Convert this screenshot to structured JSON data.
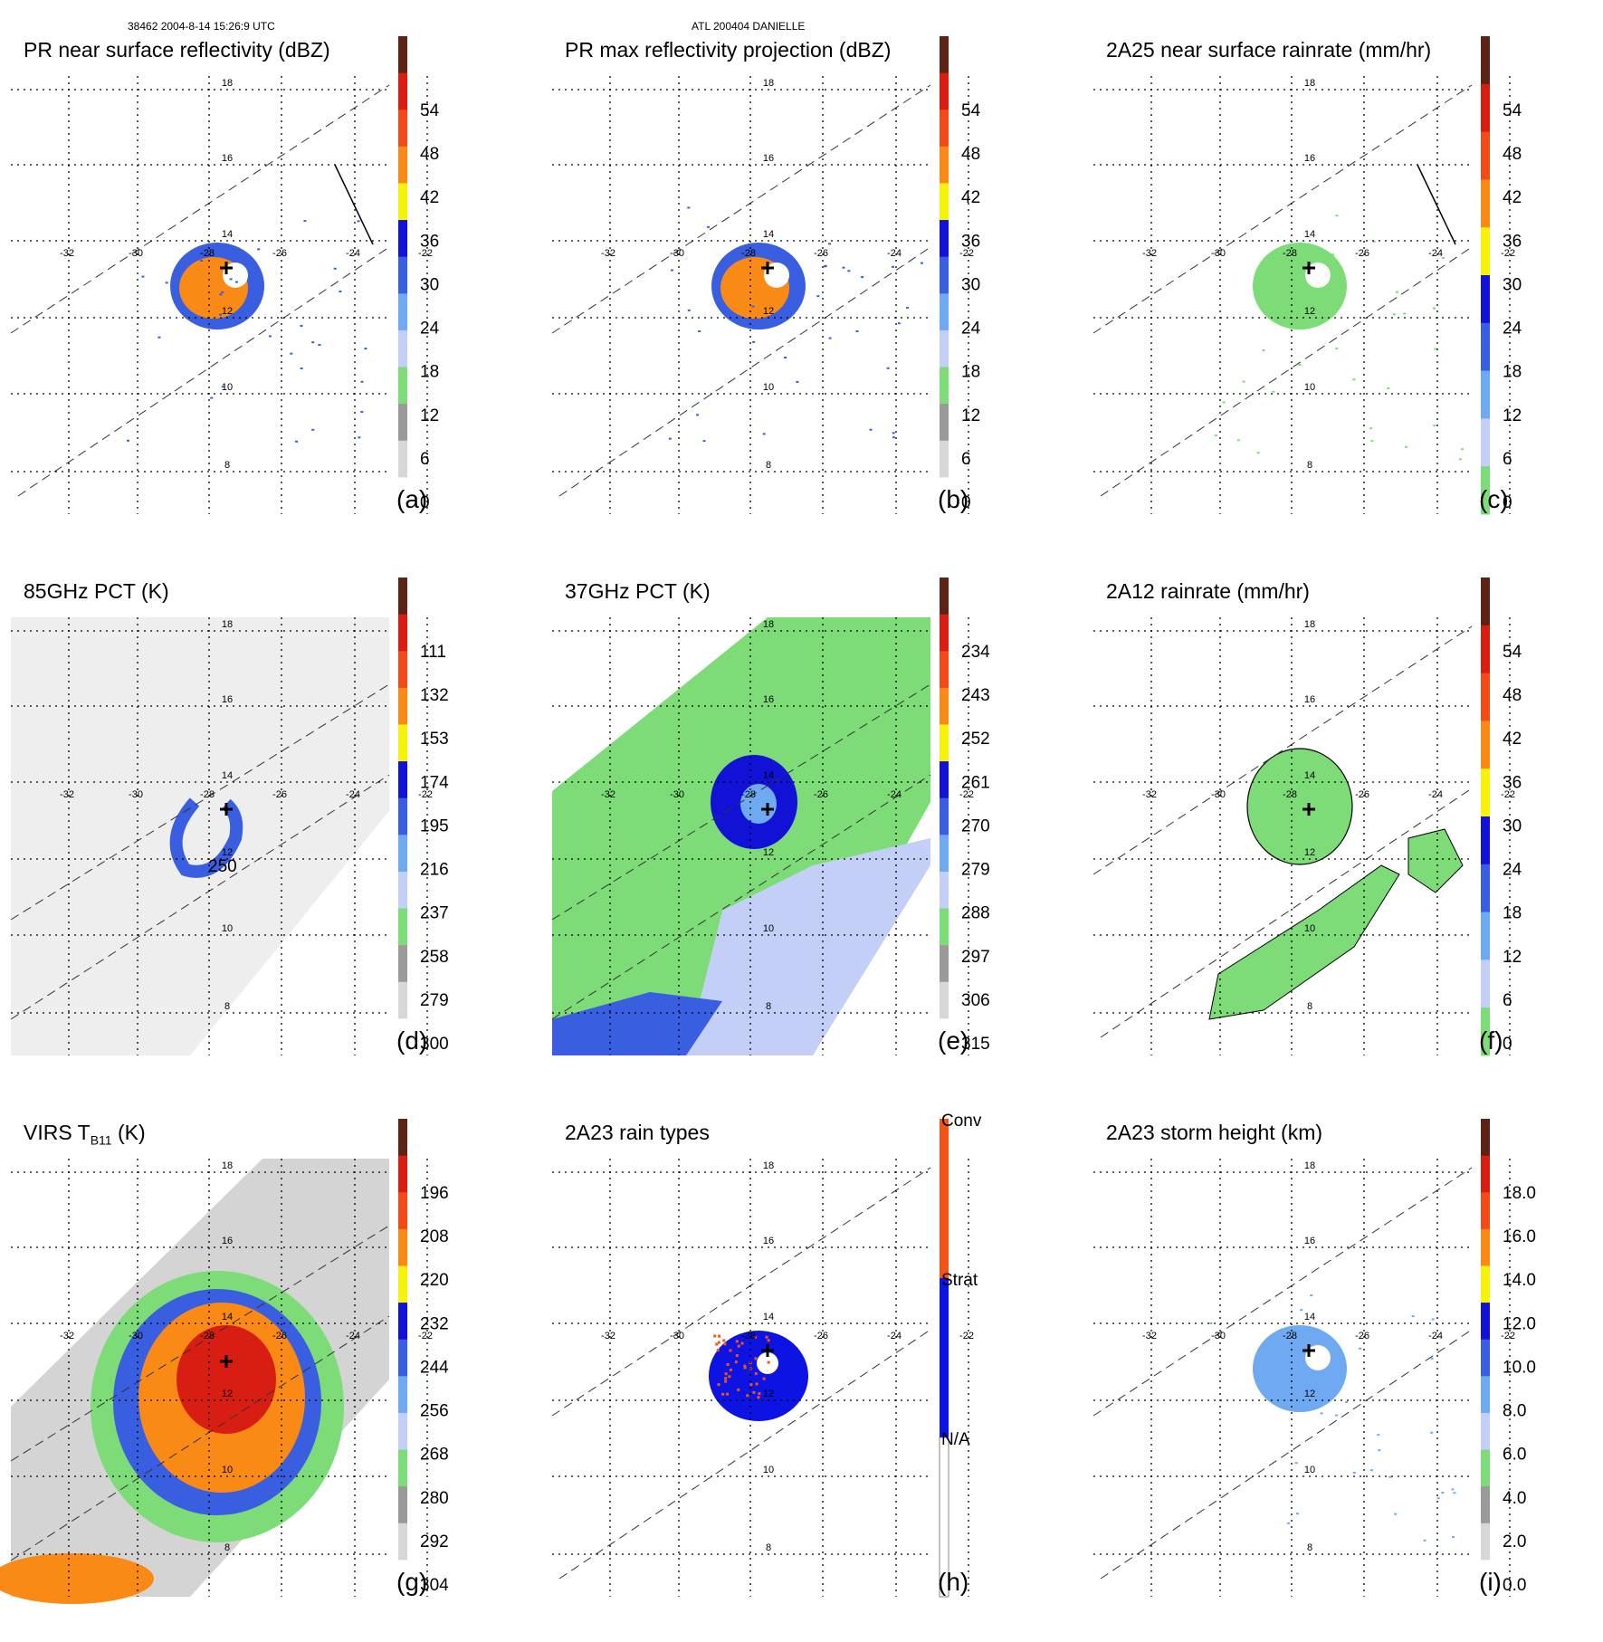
{
  "header": {
    "left": "38462 2004-8-14 15:26:9 UTC",
    "center": "ATL 200404 DANIELLE"
  },
  "colors": {
    "dark": "#5a2316",
    "red": "#d81d12",
    "orange_red": "#f24a18",
    "orange": "#f98a16",
    "yellow": "#f7f20a",
    "blue": "#1212d6",
    "blue2": "#3a5ee0",
    "light_blue": "#6fa9f2",
    "pale_blue": "#c3cff6",
    "green": "#7ddc78",
    "gray": "#9a9a9a",
    "light_gray": "#d7d7d7",
    "rain_conv": "#f25418",
    "rain_strat": "#0d13e2"
  },
  "grid": {
    "lat_ticks": [
      "18",
      "16",
      "14",
      "12",
      "10",
      "8"
    ],
    "lon_ticks": [
      "-32",
      "-30",
      "-28",
      "-26",
      "-24",
      "-22"
    ]
  },
  "panels": [
    {
      "id": "a",
      "title": "PR near surface reflectivity (dBZ)",
      "label": "(a)",
      "cbar_ticks": [
        "54",
        "48",
        "42",
        "36",
        "30",
        "24",
        "18",
        "12",
        "6",
        "0"
      ],
      "palette": "standard"
    },
    {
      "id": "b",
      "title": "PR max reflectivity projection (dBZ)",
      "label": "(b)",
      "cbar_ticks": [
        "54",
        "48",
        "42",
        "36",
        "30",
        "24",
        "18",
        "12",
        "6",
        "0"
      ],
      "palette": "standard"
    },
    {
      "id": "c",
      "title": "2A25 near surface rainrate (mm/hr)",
      "label": "(c)",
      "cbar_ticks": [
        "54",
        "48",
        "42",
        "36",
        "30",
        "24",
        "18",
        "12",
        "6",
        "0"
      ],
      "palette": "rain"
    },
    {
      "id": "d",
      "title": "85GHz PCT (K)",
      "label": "(d)",
      "cbar_ticks": [
        "111",
        "132",
        "153",
        "174",
        "195",
        "216",
        "237",
        "258",
        "279",
        "300"
      ],
      "palette": "standard",
      "contour_label": "250"
    },
    {
      "id": "e",
      "title": "37GHz PCT (K)",
      "label": "(e)",
      "cbar_ticks": [
        "234",
        "243",
        "252",
        "261",
        "270",
        "279",
        "288",
        "297",
        "306",
        "315"
      ],
      "palette": "standard"
    },
    {
      "id": "f",
      "title": "2A12 rainrate (mm/hr)",
      "label": "(f)",
      "cbar_ticks": [
        "54",
        "48",
        "42",
        "36",
        "30",
        "24",
        "18",
        "12",
        "6",
        "0"
      ],
      "palette": "rain"
    },
    {
      "id": "g",
      "title_main": "VIRS T",
      "title_sub": "B11",
      "title_tail": " (K)",
      "label": "(g)",
      "cbar_ticks": [
        "196",
        "208",
        "220",
        "232",
        "244",
        "256",
        "268",
        "280",
        "292",
        "304"
      ],
      "palette": "standard"
    },
    {
      "id": "h",
      "title": "2A23 rain types",
      "label": "(h)",
      "cbar_ticks": [
        "Conv",
        "Strat",
        "N/A"
      ],
      "palette": "types"
    },
    {
      "id": "i",
      "title": "2A23 storm height (km)",
      "label": "(i)",
      "cbar_ticks": [
        "18.0",
        "16.0",
        "14.0",
        "12.0",
        "10.0",
        "8.0",
        "6.0",
        "4.0",
        "2.0",
        "0.0"
      ],
      "palette": "standard"
    }
  ]
}
